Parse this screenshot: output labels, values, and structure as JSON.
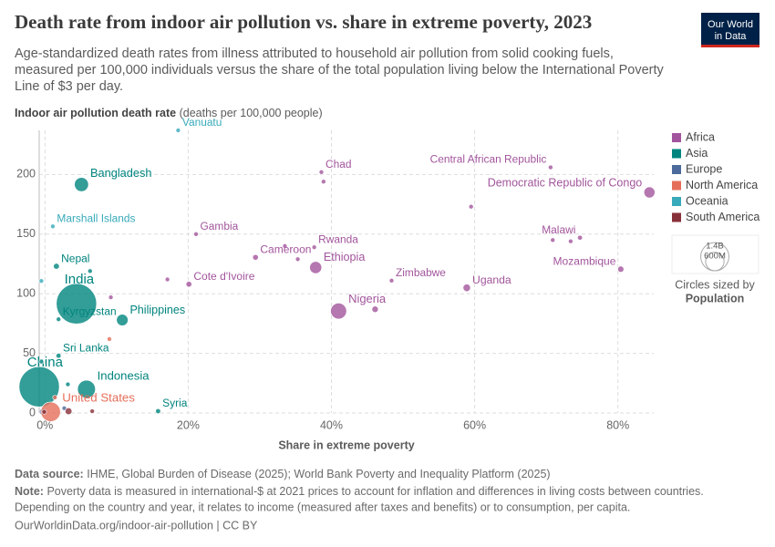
{
  "chart_data": {
    "type": "scatter",
    "title": "Death rate from indoor air pollution vs. share in extreme poverty, 2023",
    "subtitle": [
      "Age-standardized death rates from illness attributed to household air pollution from solid cooking fuels,",
      "measured per 100,000 individuals versus the share of the total population living below the International Poverty",
      "Line of $3 per day."
    ],
    "y_label": "Indoor air pollution death rate",
    "y_label_unit": "(deaths per 100,000 people)",
    "x_label": "Share in extreme poverty",
    "xlim": [
      -0.8,
      85
    ],
    "ylim": [
      0,
      237
    ],
    "xticks": [
      {
        "value": 0,
        "label": "0%"
      },
      {
        "value": 20,
        "label": "20%"
      },
      {
        "value": 40,
        "label": "40%"
      },
      {
        "value": 60,
        "label": "60%"
      },
      {
        "value": 80,
        "label": "80%"
      }
    ],
    "yticks": [
      0,
      50,
      100,
      150,
      200
    ],
    "grid": true,
    "size_legend": {
      "caption": "Circles sized by",
      "title": "Population",
      "sizes": [
        {
          "value": 1400000000,
          "label": "1.4B"
        },
        {
          "value": 600000000,
          "label": "600M"
        }
      ]
    },
    "series": [
      {
        "name": "Africa",
        "color": "#a2559c",
        "labels": [
          "Chad",
          null,
          "Central African Republic",
          "Democratic Republic of Congo",
          null,
          "Gambia",
          "Malawi",
          null,
          null,
          "Rwanda",
          null,
          "Cameroon",
          null,
          "Ethiopia",
          "Mozambique",
          "Cote d'Ivoire",
          null,
          "Zimbabwe",
          "Uganda",
          "Nigeria",
          null,
          null
        ],
        "x": [
          38.6,
          38.9,
          70.6,
          84.4,
          59.5,
          21.1,
          74.7,
          70.9,
          73.4,
          37.6,
          33.5,
          29.4,
          35.3,
          37.8,
          80.4,
          20.1,
          17.1,
          48.4,
          58.9,
          41,
          46.1,
          9.2
        ],
        "values": [
          202,
          194,
          206,
          185,
          173,
          150,
          147,
          145,
          144,
          139,
          140,
          130.5,
          129,
          122,
          120.6,
          108,
          112,
          111,
          105,
          85.5,
          87,
          97
        ],
        "sizes": [
          18000000,
          3000000,
          5000000,
          105000000,
          6000000,
          2700000,
          21000000,
          4000000,
          2000000,
          14000000,
          9000000,
          28000000,
          13000000,
          126000000,
          33000000,
          29000000,
          8000000,
          16000000,
          48000000,
          220000000,
          35000000,
          2000000
        ]
      },
      {
        "name": "Asia",
        "color": "#00847e",
        "labels": [
          "Bangladesh",
          "Nepal",
          null,
          "India",
          "Kyrgyzstan",
          "Philippines",
          "Sri Lanka",
          "China",
          "Indonesia",
          "Syria",
          null,
          null
        ],
        "x": [
          5.1,
          1.6,
          6.3,
          4.4,
          1.9,
          10.8,
          1.9,
          -0.8,
          5.8,
          15.8,
          3.2,
          -0.5
        ],
        "values": [
          191.6,
          123,
          119,
          91.6,
          78.6,
          78,
          48,
          22,
          20,
          1.5,
          24,
          43
        ],
        "sizes": [
          170000000,
          30000000,
          3000000,
          1400000000,
          7000000,
          115000000,
          22000000,
          1400000000,
          275000000,
          22000000,
          10000000,
          3000000
        ]
      },
      {
        "name": "Europe",
        "color": "#4c6a9c",
        "labels": [
          null,
          null
        ],
        "x": [
          -0.3,
          2.7
        ],
        "values": [
          1,
          4
        ],
        "sizes": [
          40000000,
          10000000
        ]
      },
      {
        "name": "North America",
        "color": "#e56e5a",
        "labels": [
          "United States",
          null,
          null
        ],
        "x": [
          0.8,
          9,
          1.4
        ],
        "values": [
          1,
          62,
          13
        ],
        "sizes": [
          330000000,
          11000000,
          5000000
        ]
      },
      {
        "name": "Oceania",
        "color": "#38aaba",
        "labels": [
          "Vanuatu",
          "Marshall Islands",
          null
        ],
        "x": [
          18.6,
          1.1,
          -0.5
        ],
        "values": [
          237,
          156.5,
          110.7
        ],
        "sizes": [
          300000,
          40000,
          700000
        ]
      },
      {
        "name": "South America",
        "color": "#883039",
        "labels": [
          null,
          null,
          null
        ],
        "x": [
          3.3,
          6.6,
          -0.1
        ],
        "values": [
          1.5,
          1.5,
          1
        ],
        "sizes": [
          40000000,
          12000000,
          20000000
        ]
      }
    ]
  },
  "logo": [
    "Our World",
    "in Data"
  ],
  "footer": {
    "source_label": "Data source:",
    "source": "IHME, Global Burden of Disease (2025); World Bank Poverty and Inequality Platform (2025)",
    "note_label": "Note:",
    "note": [
      "Poverty data is measured in international-$ at 2021 prices to account for inflation and differences in living costs between countries.",
      "Depending on the country and year, it relates to income (measured after taxes and benefits) or to consumption, per capita."
    ],
    "url": "OurWorldinData.org/indoor-air-pollution | CC BY"
  }
}
